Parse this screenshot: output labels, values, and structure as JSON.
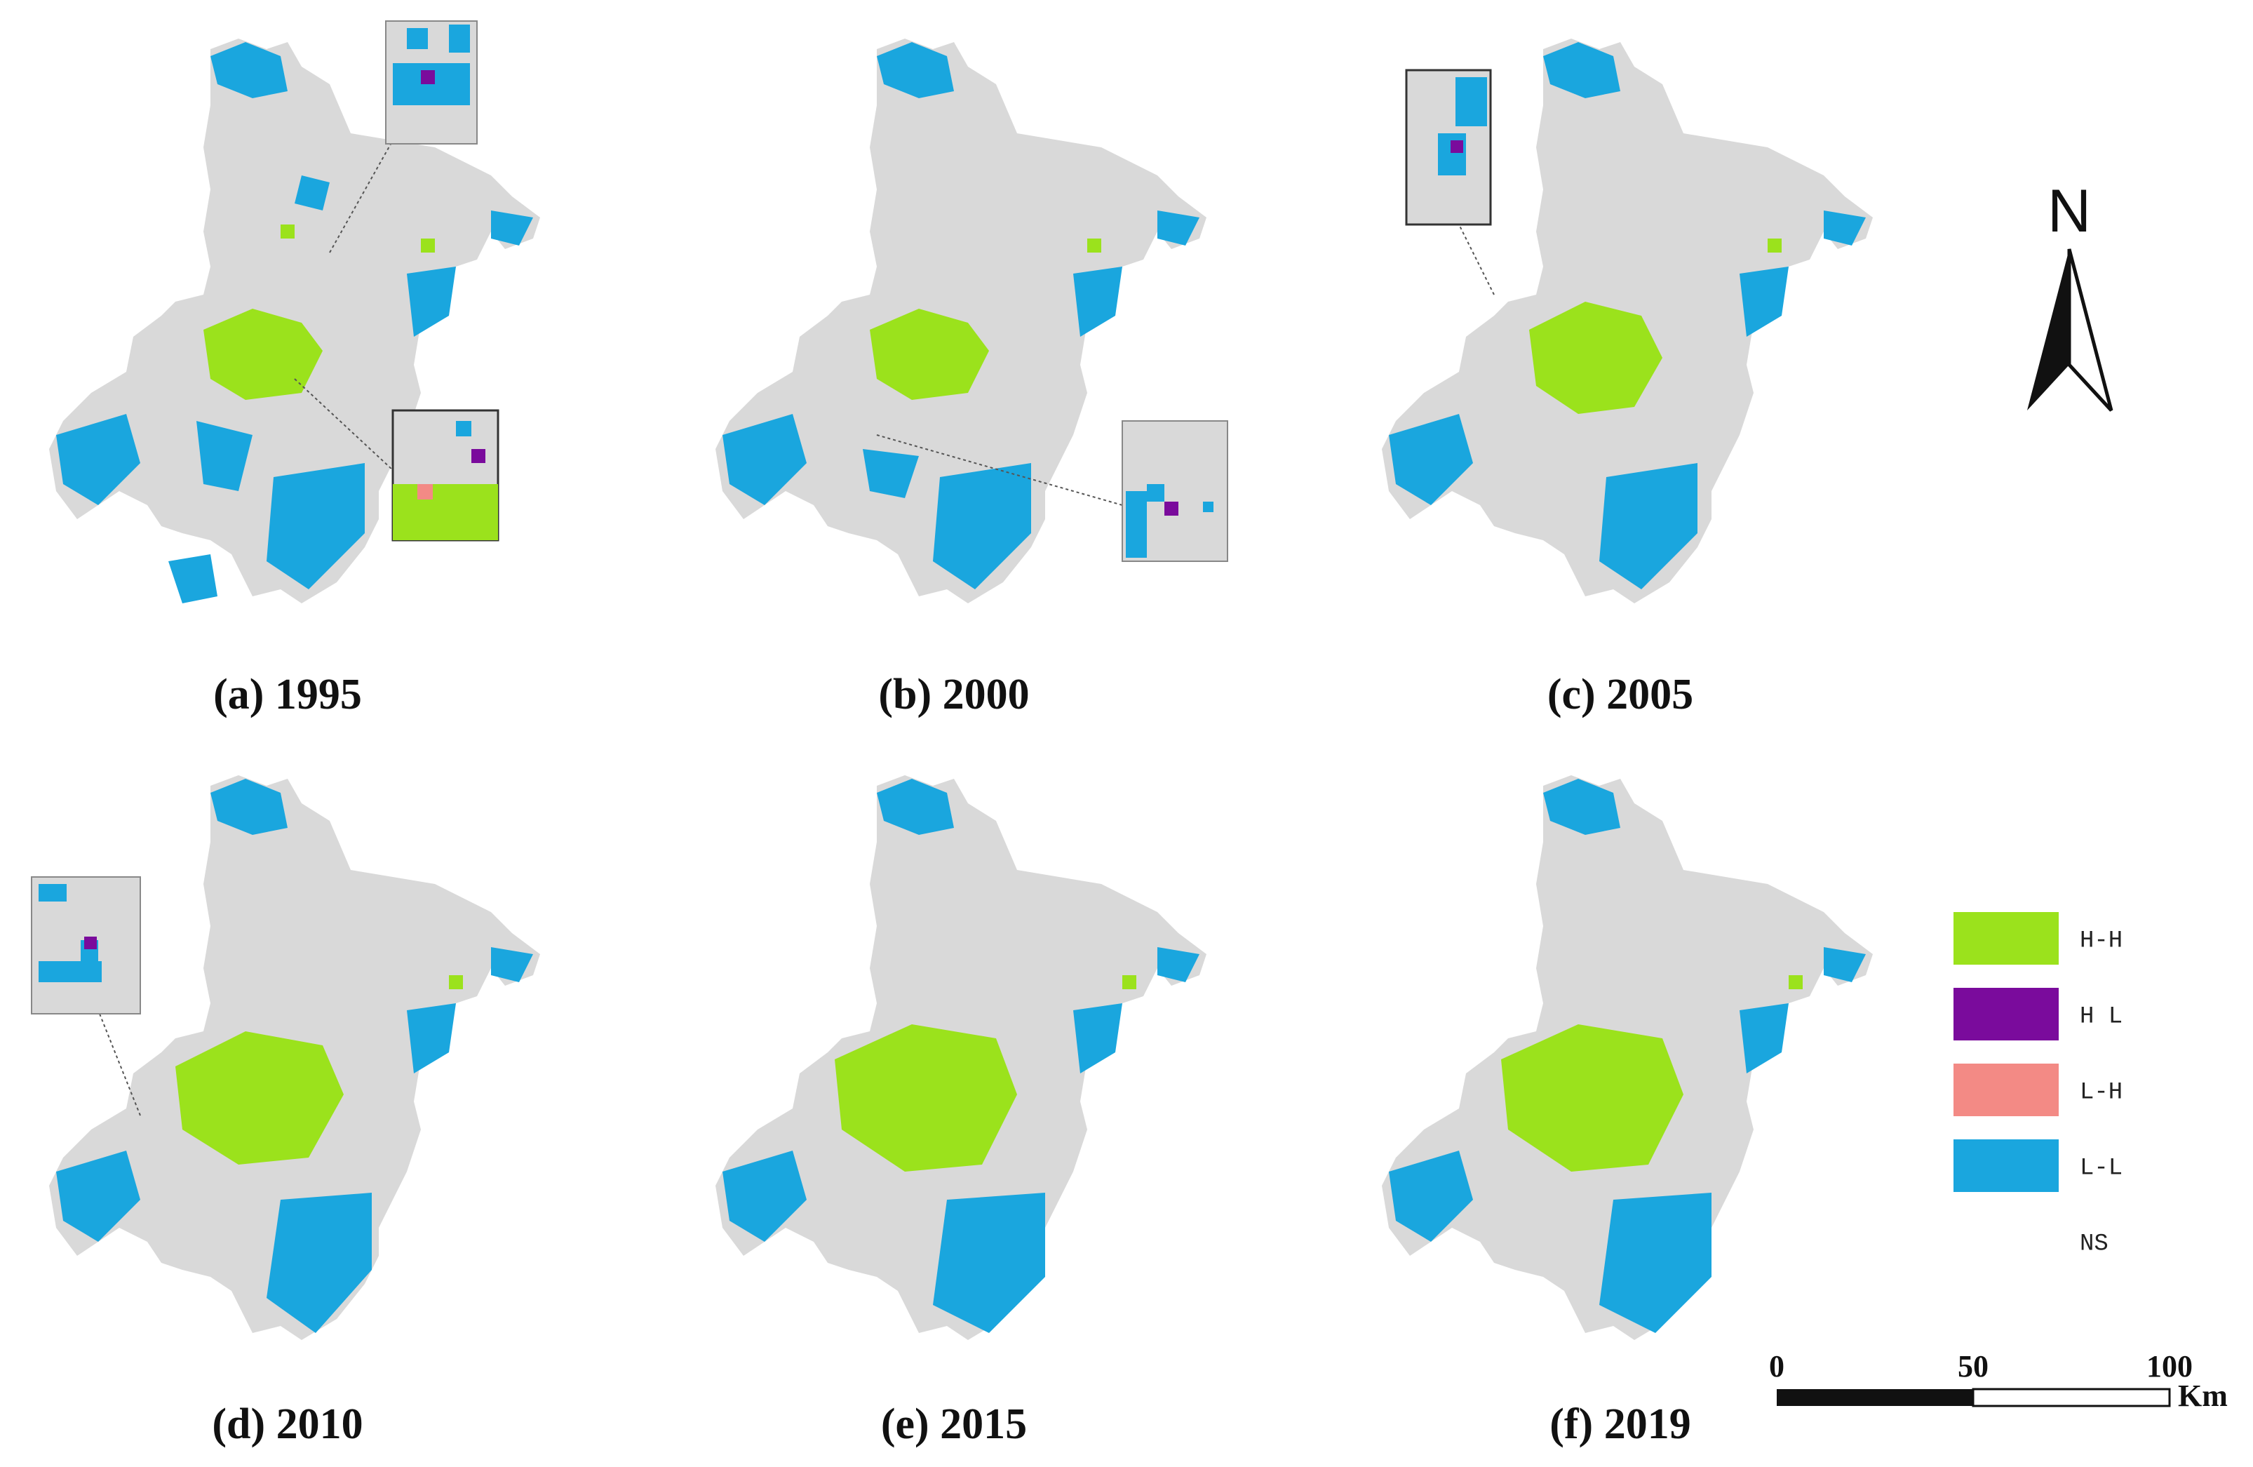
{
  "colors": {
    "H-H": "#9be21c",
    "H-L": "#7a0b9c",
    "L-H": "#f38a85",
    "L-L": "#1aa6de",
    "NS": "#d9d9d9",
    "background": "#ffffff",
    "text": "#111111"
  },
  "panels": [
    {
      "caption": "(a) 1995",
      "zoom_insets": 2
    },
    {
      "caption": "(b) 2000",
      "zoom_insets": 1
    },
    {
      "caption": "(c) 2005",
      "zoom_insets": 1
    },
    {
      "caption": "(d) 2010",
      "zoom_insets": 1
    },
    {
      "caption": "(e) 2015",
      "zoom_insets": 0
    },
    {
      "caption": "(f) 2019",
      "zoom_insets": 0
    }
  ],
  "legend": {
    "items": [
      {
        "label": "H-H",
        "color_key": "H-H"
      },
      {
        "label": "H L",
        "color_key": "H-L"
      },
      {
        "label": "L-H",
        "color_key": "L-H"
      },
      {
        "label": "L-L",
        "color_key": "L-L"
      },
      {
        "label": "NS",
        "color_key": "NS"
      }
    ]
  },
  "north_arrow": {
    "label": "N",
    "icon": "north-arrow-icon"
  },
  "scale_bar": {
    "ticks": [
      "0",
      "50",
      "100"
    ],
    "unit": "Km",
    "max_km": 100
  }
}
